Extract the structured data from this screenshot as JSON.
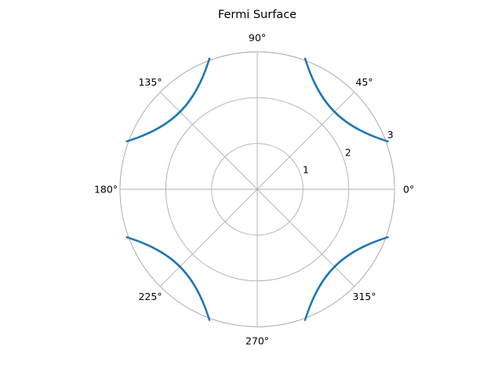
{
  "chart_data": {
    "type": "scatter",
    "projection": "polar",
    "title": "Fermi Surface",
    "theta_tick_labels": [
      "0°",
      "45°",
      "90°",
      "135°",
      "180°",
      "225°",
      "270°",
      "315°"
    ],
    "theta_ticks_deg": [
      0,
      45,
      90,
      135,
      180,
      225,
      270,
      315
    ],
    "r_ticks": [
      1,
      2,
      3
    ],
    "r_tick_labels": [
      "1",
      "2",
      "3"
    ],
    "rlim": [
      0,
      3.0
    ],
    "grid": true,
    "series": [
      {
        "marker_color": "#1f77b4",
        "description_of_points": "r(theta) on branches near diagonals",
        "branches": [
          {
            "theta_range_deg": [
              10,
              80
            ]
          },
          {
            "theta_range_deg": [
              100,
              170
            ]
          },
          {
            "theta_range_deg": [
              190,
              260
            ]
          },
          {
            "theta_range_deg": [
              280,
              350
            ]
          }
        ],
        "points_theta_deg": [
          10,
          15,
          20,
          25,
          30,
          35,
          40,
          45,
          50,
          55,
          60,
          65,
          70,
          75,
          80
        ],
        "points_r": [
          3.03,
          2.86,
          2.71,
          2.59,
          2.5,
          2.44,
          2.4,
          2.39,
          2.4,
          2.44,
          2.5,
          2.59,
          2.71,
          2.86,
          3.03
        ]
      }
    ]
  }
}
